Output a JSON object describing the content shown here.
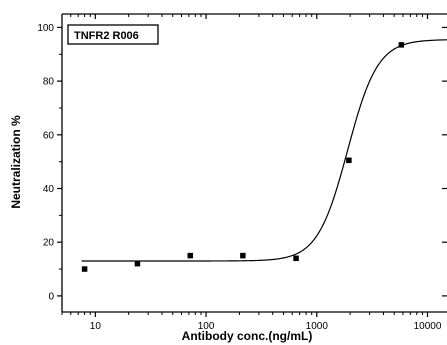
{
  "chart_data": {
    "type": "scatter",
    "title": "",
    "legend_label": "TNFR2 R006",
    "legend_placement": "top-left",
    "xlabel": "Antibody conc.(ng/mL)",
    "ylabel": "Neutralization %",
    "x_scale": "log",
    "xlim": [
      5,
      15000
    ],
    "ylim": [
      -6,
      105
    ],
    "x_ticks": [
      10,
      100,
      1000,
      10000
    ],
    "x_tick_labels": [
      "10",
      "100",
      "1000",
      "10000"
    ],
    "y_ticks": [
      0,
      20,
      40,
      60,
      80,
      100
    ],
    "y_tick_labels": [
      "0",
      "20",
      "40",
      "60",
      "80",
      "100"
    ],
    "grid": false,
    "points": [
      {
        "x": 8,
        "y": 10
      },
      {
        "x": 24,
        "y": 12
      },
      {
        "x": 72,
        "y": 15
      },
      {
        "x": 215,
        "y": 15
      },
      {
        "x": 650,
        "y": 14
      },
      {
        "x": 1950,
        "y": 50.5
      },
      {
        "x": 5800,
        "y": 93.5
      }
    ],
    "fit_curve": {
      "model": "4PL",
      "bottom": 13,
      "top": 95.5,
      "ec50": 1900,
      "hill": 3.2
    },
    "colors": {
      "marker": "#000000",
      "line": "#000000",
      "axis": "#000000"
    }
  }
}
